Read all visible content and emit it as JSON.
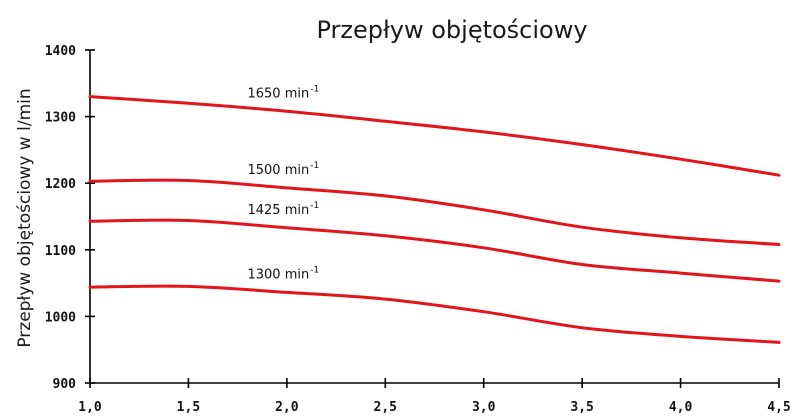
{
  "chart_data": {
    "type": "line",
    "title": "Przepływ objętościowy",
    "xlabel": "",
    "ylabel": "Przepływ objętościowy w l/min",
    "xlim": [
      1.0,
      4.5
    ],
    "ylim": [
      900,
      1400
    ],
    "x_ticks": [
      "1,0",
      "1,5",
      "2,0",
      "2,5",
      "3,0",
      "3,5",
      "4,0",
      "4,5"
    ],
    "y_ticks": [
      "900",
      "1000",
      "1100",
      "1200",
      "1300",
      "1400"
    ],
    "x_tick_values": [
      1.0,
      1.5,
      2.0,
      2.5,
      3.0,
      3.5,
      4.0,
      4.5
    ],
    "y_tick_values": [
      900,
      1000,
      1100,
      1200,
      1300,
      1400
    ],
    "grid": false,
    "line_color": "#e3141b",
    "x": [
      1.0,
      1.5,
      2.0,
      2.5,
      3.0,
      3.5,
      4.0,
      4.5
    ],
    "series": [
      {
        "name": "1650 min",
        "sup": "-1",
        "values": [
          1330,
          1320,
          1308,
          1293,
          1277,
          1258,
          1236,
          1212
        ]
      },
      {
        "name": "1500 min",
        "sup": "-1",
        "values": [
          1203,
          1204,
          1193,
          1181,
          1160,
          1134,
          1118,
          1108
        ]
      },
      {
        "name": "1425 min",
        "sup": "-1",
        "values": [
          1143,
          1144,
          1133,
          1121,
          1103,
          1078,
          1065,
          1053
        ]
      },
      {
        "name": "1300 min",
        "sup": "-1",
        "values": [
          1044,
          1045,
          1036,
          1026,
          1007,
          983,
          970,
          961
        ]
      }
    ]
  }
}
